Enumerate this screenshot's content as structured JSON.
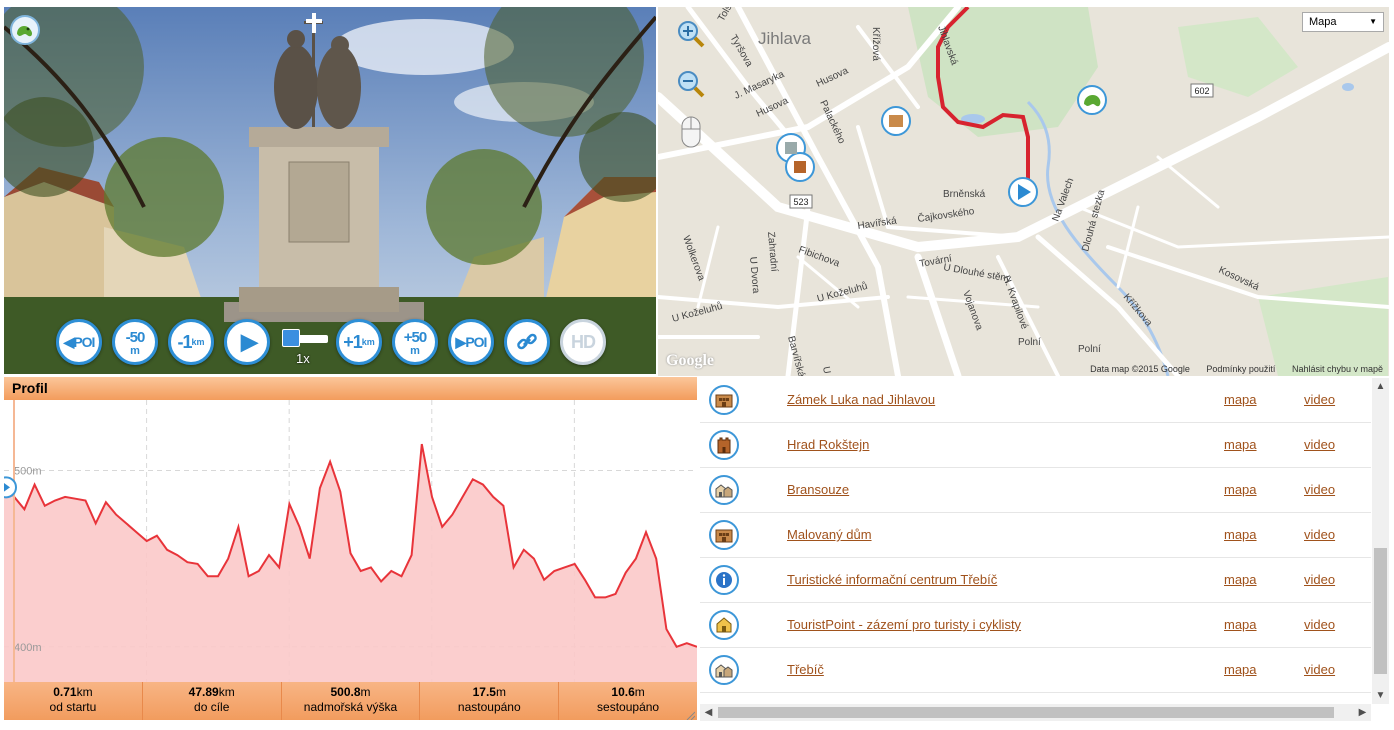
{
  "video": {
    "controls": [
      {
        "name": "prev-poi-button",
        "main": "◀POI",
        "sub": ""
      },
      {
        "name": "back-50m-button",
        "main": "-50",
        "sub": "m"
      },
      {
        "name": "back-1km-button",
        "main": "-1",
        "sub": "km"
      },
      {
        "name": "play-button",
        "main": "▶",
        "sub": ""
      },
      {
        "name": "forward-1km-button",
        "main": "+1",
        "sub": "km"
      },
      {
        "name": "forward-50m-button",
        "main": "+50",
        "sub": "m"
      },
      {
        "name": "next-poi-button",
        "main": "▶POI",
        "sub": ""
      },
      {
        "name": "link-button",
        "main": "🔗",
        "sub": ""
      },
      {
        "name": "hd-button",
        "main": "HD",
        "sub": ""
      }
    ],
    "speed_label": "1x"
  },
  "map": {
    "type_select": "Mapa",
    "city_label": "Jihlava",
    "streets": [
      "Tolstého",
      "Tyršova",
      "J. Masaryka",
      "Husova",
      "Husova",
      "Palackého",
      "Křížová",
      "Jihlavská",
      "Brněnská",
      "Čajkovského",
      "Havířská",
      "Fibichova",
      "Zahradní",
      "U Dvora",
      "Wolkerova",
      "Tovární",
      "U Dlouhé stěny",
      "Vojanova",
      "H. Kvapilové",
      "U Koželuhů",
      "U Koželuhů",
      "Barvířská",
      "Polní",
      "Polní",
      "Na Valech",
      "Dlouhá stezka",
      "Kosovská",
      "Křížkova",
      "U"
    ],
    "road_badges": [
      "523",
      "602"
    ],
    "footer": {
      "data": "Data map ©2015 Google",
      "terms": "Podmínky použití",
      "report": "Nahlásit chybu v mapě"
    },
    "brand": "Google"
  },
  "profile": {
    "title": "Profil",
    "y_labels": [
      "500m",
      "400m"
    ],
    "stats": [
      {
        "value": "0.71",
        "unit": "km",
        "label": "od startu"
      },
      {
        "value": "47.89",
        "unit": "km",
        "label": "do cíle"
      },
      {
        "value": "500.8",
        "unit": "m",
        "label": "nadmořská výška"
      },
      {
        "value": "17.5",
        "unit": "m",
        "label": "nastoupáno"
      },
      {
        "value": "10.6",
        "unit": "m",
        "label": "sestoupáno"
      }
    ]
  },
  "poi_list": {
    "map_link": "mapa",
    "video_link": "video",
    "items": [
      {
        "name": "Zámek Luka nad Jihlavou",
        "icon": "palace-icon"
      },
      {
        "name": "Hrad Rokštejn",
        "icon": "castle-icon"
      },
      {
        "name": "Bransouze",
        "icon": "town-icon"
      },
      {
        "name": "Malovaný dům",
        "icon": "palace-icon"
      },
      {
        "name": "Turistické informační centrum Třebíč",
        "icon": "info-icon"
      },
      {
        "name": "TouristPoint - zázemí pro turisty i cyklisty",
        "icon": "house-icon"
      },
      {
        "name": "Třebíč",
        "icon": "town-icon"
      }
    ]
  },
  "chart_data": {
    "type": "area",
    "title": "Profil",
    "xlabel": "",
    "ylabel": "",
    "y_ticks": [
      "500m",
      "400m"
    ],
    "ylim": [
      380,
      540
    ],
    "grid": true,
    "series": [
      {
        "values": [
          495,
          485,
          478,
          492,
          480,
          483,
          485,
          484,
          483,
          470,
          482,
          475,
          470,
          465,
          460,
          463,
          455,
          452,
          448,
          447,
          440,
          440,
          450,
          468,
          440,
          443,
          452,
          445,
          481,
          468,
          450,
          490,
          505,
          488,
          453,
          443,
          445,
          437,
          443,
          440,
          452,
          515,
          485,
          468,
          475,
          485,
          495,
          492,
          485,
          480,
          445,
          455,
          450,
          438,
          443,
          445,
          447,
          438,
          428,
          428,
          430,
          442,
          450,
          465,
          450,
          410,
          400,
          402,
          400
        ]
      }
    ],
    "marker_position": 0.71
  }
}
